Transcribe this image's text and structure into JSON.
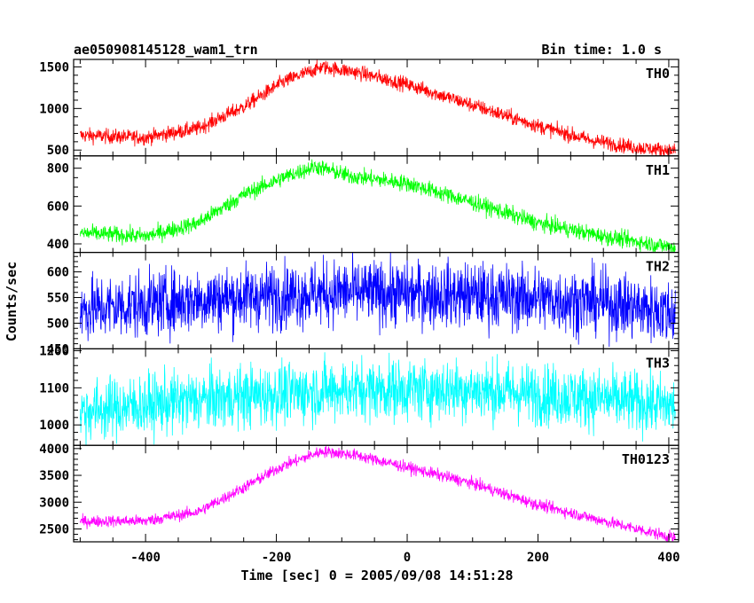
{
  "header": {
    "title": "ae050908145128_wam1_trn",
    "bin_time": "Bin time: 1.0 s"
  },
  "axes": {
    "xlabel": "Time [sec] 0 = 2005/09/08 14:51:28",
    "ylabel": "Counts/sec"
  },
  "chart_data": {
    "type": "line",
    "x_range": [
      -510,
      415
    ],
    "x_ticks": [
      -400,
      -200,
      0,
      200,
      400
    ],
    "x_minor_step": 50,
    "panels": [
      {
        "name": "TH0",
        "color": "#ff0000",
        "ylim": [
          430,
          1590
        ],
        "y_ticks": [
          500,
          1000,
          1500
        ],
        "y_minor_step": 100,
        "profile": [
          [
            -510,
            680
          ],
          [
            -400,
            650
          ],
          [
            -320,
            760
          ],
          [
            -250,
            1020
          ],
          [
            -190,
            1320
          ],
          [
            -130,
            1500
          ],
          [
            -80,
            1440
          ],
          [
            0,
            1290
          ],
          [
            100,
            1040
          ],
          [
            200,
            790
          ],
          [
            280,
            620
          ],
          [
            350,
            530
          ],
          [
            410,
            490
          ]
        ],
        "noise": 45
      },
      {
        "name": "TH1",
        "color": "#00ff00",
        "ylim": [
          355,
          865
        ],
        "y_ticks": [
          400,
          600,
          800
        ],
        "y_minor_step": 50,
        "profile": [
          [
            -510,
            460
          ],
          [
            -400,
            440
          ],
          [
            -320,
            510
          ],
          [
            -250,
            660
          ],
          [
            -190,
            750
          ],
          [
            -140,
            810
          ],
          [
            -90,
            760
          ],
          [
            0,
            720
          ],
          [
            100,
            620
          ],
          [
            200,
            510
          ],
          [
            300,
            440
          ],
          [
            410,
            380
          ]
        ],
        "noise": 22
      },
      {
        "name": "TH2",
        "color": "#0000ff",
        "ylim": [
          450,
          638
        ],
        "y_ticks": [
          450,
          500,
          550,
          600
        ],
        "y_minor_step": 10,
        "profile": [
          [
            -510,
            525
          ],
          [
            -300,
            548
          ],
          [
            -100,
            560
          ],
          [
            100,
            555
          ],
          [
            300,
            540
          ],
          [
            410,
            520
          ]
        ],
        "noise": 32
      },
      {
        "name": "TH3",
        "color": "#00ffff",
        "ylim": [
          945,
          1205
        ],
        "y_ticks": [
          1000,
          1100,
          1200
        ],
        "y_minor_step": 20,
        "profile": [
          [
            -510,
            1035
          ],
          [
            -300,
            1070
          ],
          [
            -100,
            1095
          ],
          [
            100,
            1095
          ],
          [
            300,
            1070
          ],
          [
            410,
            1050
          ]
        ],
        "noise": 42
      },
      {
        "name": "TH0123",
        "color": "#ff00ff",
        "ylim": [
          2260,
          4060
        ],
        "y_ticks": [
          2500,
          3000,
          3500,
          4000
        ],
        "y_minor_step": 100,
        "profile": [
          [
            -510,
            2640
          ],
          [
            -400,
            2650
          ],
          [
            -320,
            2820
          ],
          [
            -250,
            3270
          ],
          [
            -190,
            3680
          ],
          [
            -130,
            3950
          ],
          [
            -80,
            3880
          ],
          [
            0,
            3650
          ],
          [
            100,
            3350
          ],
          [
            200,
            2950
          ],
          [
            300,
            2650
          ],
          [
            410,
            2330
          ]
        ],
        "noise": 55
      }
    ]
  }
}
